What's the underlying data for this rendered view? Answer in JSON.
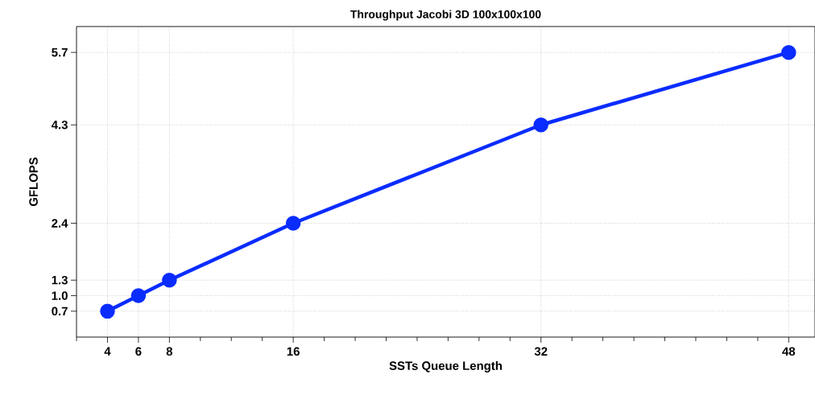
{
  "chart_data": {
    "type": "line",
    "title": "Throughput Jacobi 3D 100x100x100",
    "xlabel": "SSTs Queue Length",
    "ylabel": "GFLOPS",
    "x": [
      4,
      6,
      8,
      16,
      32,
      48
    ],
    "series": [
      {
        "color": "#0a2cff",
        "values": [
          0.7,
          1.0,
          1.3,
          2.4,
          4.3,
          5.7
        ]
      }
    ],
    "xlim": [
      2,
      49.7
    ],
    "ylim": [
      0.2,
      6.2
    ],
    "xticks": [
      {
        "value": 2,
        "label": null
      },
      4,
      6,
      8,
      {
        "value": 10,
        "label": null
      },
      {
        "value": 12,
        "label": null
      },
      {
        "value": 14,
        "label": null
      },
      16,
      {
        "value": 18,
        "label": null
      },
      {
        "value": 20,
        "label": null
      },
      {
        "value": 22,
        "label": null
      },
      {
        "value": 24,
        "label": null
      },
      {
        "value": 26,
        "label": null
      },
      {
        "value": 28,
        "label": null
      },
      {
        "value": 30,
        "label": null
      },
      32,
      {
        "value": 34,
        "label": null
      },
      {
        "value": 36,
        "label": null
      },
      {
        "value": 38,
        "label": null
      },
      {
        "value": 40,
        "label": null
      },
      {
        "value": 42,
        "label": null
      },
      {
        "value": 44,
        "label": null
      },
      {
        "value": 46,
        "label": null
      },
      48
    ],
    "yticks": [
      0.7,
      {
        "value": 1.0,
        "label": "1.0"
      },
      1.3,
      2.4,
      4.3,
      5.7
    ],
    "grid": true,
    "marker": "circle",
    "line_style": "solid"
  }
}
